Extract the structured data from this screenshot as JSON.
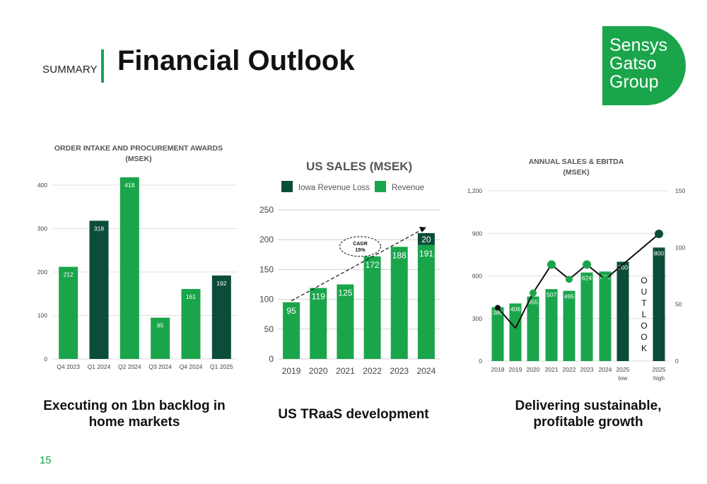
{
  "header": {
    "section": "SUMMARY",
    "title": "Financial Outlook"
  },
  "logo": {
    "line1": "Sensys",
    "line2": "Gatso",
    "line3": "Group"
  },
  "colors": {
    "green": "#1aa54b",
    "dark_green": "#0b4d3a",
    "grid": "#dddddd"
  },
  "captions": {
    "left": "Executing on 1bn backlog in home markets",
    "middle": "US TRaaS development",
    "right": "Delivering  sustainable, profitable growth"
  },
  "page_number": "15",
  "chart_data": [
    {
      "type": "bar",
      "title": "ORDER INTAKE AND PROCUREMENT AWARDS",
      "subtitle": "(MSEK)",
      "categories": [
        "Q4 2023",
        "Q1 2024",
        "Q2 2024",
        "Q3 2024",
        "Q4 2024",
        "Q1 2025"
      ],
      "values": [
        212,
        318,
        418,
        95,
        161,
        192
      ],
      "bar_colors": [
        "green",
        "dark_green",
        "green",
        "green",
        "green",
        "dark_green"
      ],
      "yticks": [
        "0",
        "100",
        "200",
        "300",
        "400"
      ],
      "ylim": [
        0,
        440
      ],
      "grid": true
    },
    {
      "type": "bar",
      "title": "US SALES (MSEK)",
      "categories": [
        "2019",
        "2020",
        "2021",
        "2022",
        "2023",
        "2024"
      ],
      "series": [
        {
          "name": "Revenue",
          "values": [
            95,
            119,
            125,
            172,
            188,
            191
          ],
          "color": "green"
        },
        {
          "name": "Iowa Revenue Loss",
          "values": [
            0,
            0,
            0,
            0,
            0,
            20
          ],
          "color": "dark_green"
        }
      ],
      "legend_order": [
        "Iowa Revenue Loss",
        "Revenue"
      ],
      "legend": "top",
      "stacked": true,
      "yticks": [
        "0",
        "50",
        "100",
        "150",
        "200",
        "250"
      ],
      "ylim": [
        0,
        250
      ],
      "annotation": {
        "line1": "CAGR",
        "line2": "15%"
      },
      "grid": true
    },
    {
      "type": "bar",
      "title": "ANNUAL SALES & EBITDA",
      "subtitle": "(MSEK)",
      "categories": [
        "2018",
        "2019",
        "2020",
        "2021",
        "2022",
        "2023",
        "2024",
        "2025 low",
        "2025 high"
      ],
      "category_lines": [
        [
          "2018"
        ],
        [
          "2019"
        ],
        [
          "2020"
        ],
        [
          "2021"
        ],
        [
          "2022"
        ],
        [
          "2023"
        ],
        [
          "2024"
        ],
        [
          "2025",
          "low"
        ],
        [
          "2025",
          "high"
        ]
      ],
      "sales": [
        380,
        406,
        455,
        507,
        495,
        624,
        631,
        700,
        800
      ],
      "bar_colors": [
        "green",
        "green",
        "green",
        "green",
        "green",
        "green",
        "green",
        "dark_green",
        "dark_green"
      ],
      "ebitda": [
        null,
        29,
        60,
        85,
        72,
        85,
        72,
        null,
        112
      ],
      "ebitda_segments": [
        [
          1,
          6
        ],
        [
          6,
          8
        ]
      ],
      "ebitda_label_point": {
        "category": "2018",
        "value": 47
      },
      "yticks_left": [
        "0",
        "300",
        "600",
        "900",
        "1,200"
      ],
      "ylim_left": [
        0,
        1200
      ],
      "yticks_right": [
        "0",
        "50",
        "100",
        "150"
      ],
      "ylim_right": [
        0,
        150
      ],
      "outlook_label": [
        "O",
        "U",
        "T",
        "L",
        "O",
        "O",
        "K"
      ],
      "grid": true
    }
  ]
}
